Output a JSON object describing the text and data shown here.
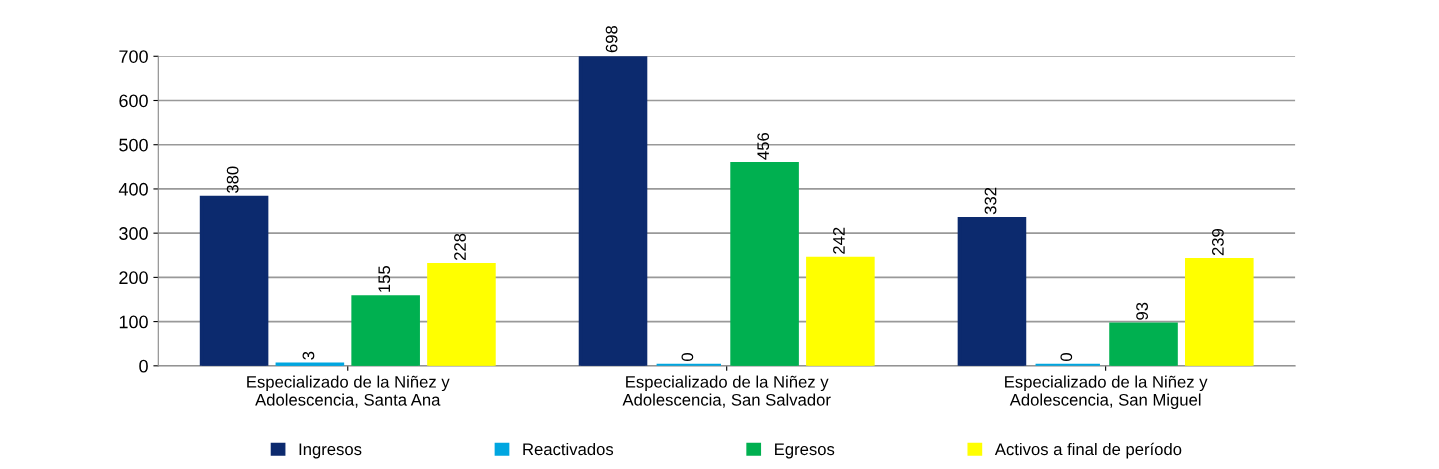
{
  "chart_data": {
    "type": "bar",
    "categories": [
      "Especializado de la Niñez y\nAdolescencia, Santa Ana",
      "Especializado de la Niñez y\nAdolescencia, San Salvador",
      "Especializado de la Niñez y\nAdolescencia, San Miguel"
    ],
    "series": [
      {
        "name": "Ingresos",
        "color": "#0c2a6e",
        "values": [
          380,
          698,
          332
        ]
      },
      {
        "name": "Reactivados",
        "color": "#00a6e0",
        "values": [
          3,
          0,
          0
        ]
      },
      {
        "name": "Egresos",
        "color": "#00b050",
        "values": [
          155,
          456,
          93
        ]
      },
      {
        "name": "Activos a final de período",
        "color": "#ffff00",
        "values": [
          228,
          242,
          239
        ]
      }
    ],
    "ylim": [
      0,
      700
    ],
    "yticks": [
      0,
      100,
      200,
      300,
      400,
      500,
      600,
      700
    ],
    "grid": "y",
    "legend": "bottom",
    "data_labels": true
  }
}
